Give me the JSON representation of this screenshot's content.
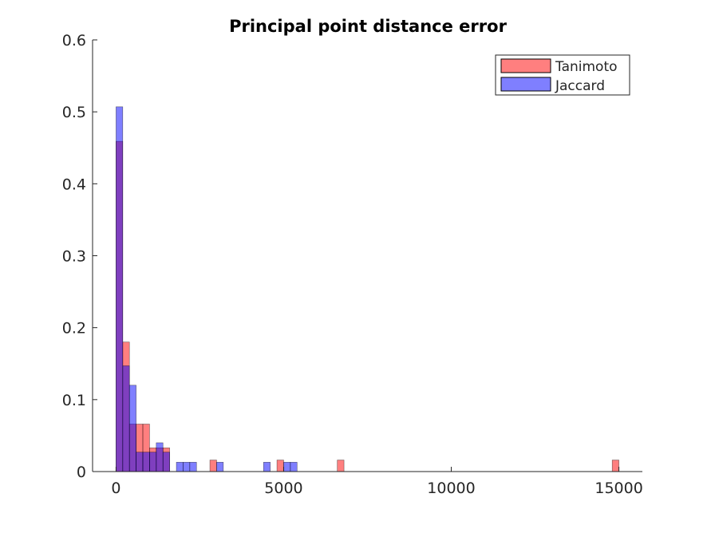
{
  "chart_data": {
    "type": "bar",
    "title": "Principal point distance error",
    "xlabel": "",
    "ylabel": "",
    "xlim": [
      -700,
      15700
    ],
    "ylim": [
      0,
      0.6
    ],
    "x_ticks": [
      0,
      5000,
      10000,
      15000
    ],
    "x_tick_labels": [
      "0",
      "5000",
      "10000",
      "15000"
    ],
    "y_ticks": [
      0,
      0.1,
      0.2,
      0.3,
      0.4,
      0.5,
      0.6
    ],
    "y_tick_labels": [
      "0",
      "0.1",
      "0.2",
      "0.3",
      "0.4",
      "0.5",
      "0.6"
    ],
    "bin_width": 200,
    "legend_position": "top-right",
    "series": [
      {
        "name": "Tanimoto",
        "color": "#ff0000",
        "alpha": 0.5,
        "bins": [
          {
            "start": 0,
            "value": 0.459
          },
          {
            "start": 200,
            "value": 0.18
          },
          {
            "start": 400,
            "value": 0.066
          },
          {
            "start": 600,
            "value": 0.066
          },
          {
            "start": 800,
            "value": 0.066
          },
          {
            "start": 1000,
            "value": 0.033
          },
          {
            "start": 1200,
            "value": 0.033
          },
          {
            "start": 1400,
            "value": 0.033
          },
          {
            "start": 2800,
            "value": 0.016
          },
          {
            "start": 4800,
            "value": 0.016
          },
          {
            "start": 6600,
            "value": 0.016
          },
          {
            "start": 14800,
            "value": 0.016
          }
        ]
      },
      {
        "name": "Jaccard",
        "color": "#0000ff",
        "alpha": 0.5,
        "bins": [
          {
            "start": 0,
            "value": 0.507
          },
          {
            "start": 200,
            "value": 0.147
          },
          {
            "start": 400,
            "value": 0.12
          },
          {
            "start": 600,
            "value": 0.027
          },
          {
            "start": 800,
            "value": 0.027
          },
          {
            "start": 1000,
            "value": 0.027
          },
          {
            "start": 1200,
            "value": 0.04
          },
          {
            "start": 1400,
            "value": 0.027
          },
          {
            "start": 1800,
            "value": 0.013
          },
          {
            "start": 2000,
            "value": 0.013
          },
          {
            "start": 2200,
            "value": 0.013
          },
          {
            "start": 3000,
            "value": 0.013
          },
          {
            "start": 4400,
            "value": 0.013
          },
          {
            "start": 5000,
            "value": 0.013
          },
          {
            "start": 5200,
            "value": 0.013
          }
        ]
      }
    ]
  }
}
